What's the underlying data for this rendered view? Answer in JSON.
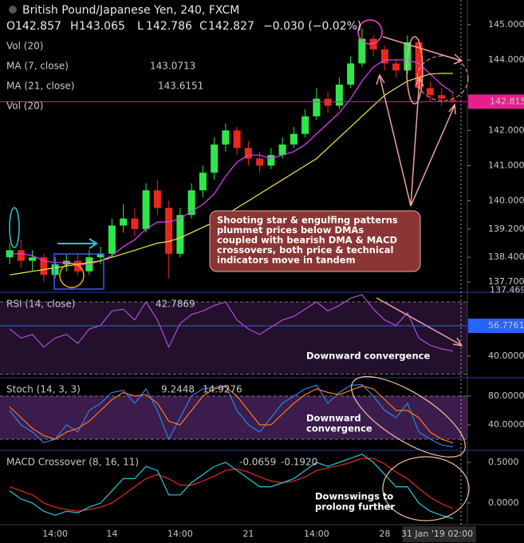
{
  "chart_data": [
    {
      "type": "candlestick",
      "title": "British Pound/Japanese Yen, 240, FXCM",
      "ohlc_letters": [
        "O",
        "H",
        "L",
        "C"
      ],
      "change": "−0.030 (−0.02%)",
      "indicator_labels": [
        "Vol (20)",
        "Vol (20)"
      ],
      "categories": [
        null,
        null,
        null,
        null,
        "14:00",
        null,
        null,
        null,
        null,
        "14",
        null,
        null,
        null,
        null,
        null,
        "14:00",
        null,
        null,
        null,
        null,
        null,
        "21",
        null,
        null,
        null,
        null,
        null,
        "14:00",
        null,
        null,
        null,
        null,
        null,
        "28",
        null,
        null,
        null,
        null,
        null,
        "31 Jan '19  02:00"
      ],
      "open": [
        138.4,
        138.6,
        138.3,
        138.4,
        137.9,
        138.2,
        138.3,
        138.0,
        138.4,
        138.5,
        139.3,
        139.5,
        139.2,
        140.3,
        139.8,
        138.5,
        139.6,
        140.3,
        140.8,
        141.6,
        142.0,
        141.5,
        141.2,
        141.0,
        141.3,
        141.6,
        141.9,
        142.4,
        142.9,
        142.7,
        143.3,
        143.9,
        144.6,
        144.3,
        143.9,
        143.7,
        144.5,
        143.2,
        143.0,
        142.857
      ],
      "high": [
        138.8,
        138.9,
        138.6,
        138.5,
        138.4,
        138.5,
        138.5,
        138.6,
        138.7,
        139.5,
        139.9,
        139.8,
        140.5,
        140.6,
        140.0,
        139.8,
        140.5,
        141.0,
        141.8,
        142.2,
        142.1,
        141.7,
        141.4,
        141.5,
        141.8,
        142.1,
        142.6,
        143.2,
        143.1,
        143.5,
        144.1,
        144.9,
        144.7,
        144.4,
        144.0,
        144.7,
        144.6,
        143.4,
        143.2,
        143.065
      ],
      "low": [
        138.2,
        138.1,
        138.0,
        137.7,
        137.8,
        138.0,
        137.9,
        137.9,
        138.2,
        138.4,
        139.1,
        139.0,
        139.1,
        139.6,
        137.8,
        138.4,
        139.5,
        140.1,
        140.6,
        141.4,
        141.3,
        141.0,
        140.8,
        140.9,
        141.2,
        141.5,
        141.8,
        142.3,
        142.5,
        142.6,
        143.2,
        143.8,
        144.1,
        143.7,
        143.5,
        143.6,
        143.0,
        142.8,
        142.7,
        142.786
      ],
      "close": [
        138.6,
        138.3,
        138.4,
        137.9,
        138.2,
        138.3,
        138.0,
        138.4,
        138.5,
        139.3,
        139.5,
        139.2,
        140.3,
        139.8,
        138.5,
        139.6,
        140.3,
        140.8,
        141.6,
        142.0,
        141.5,
        141.2,
        141.0,
        141.3,
        141.6,
        141.9,
        142.4,
        142.9,
        142.7,
        143.3,
        143.9,
        144.6,
        144.3,
        143.9,
        143.7,
        144.5,
        143.2,
        143.0,
        142.9,
        142.827
      ],
      "up_color": "#2ee84a",
      "down_color": "#e8281e",
      "overlays": [
        {
          "name": "MA (7, close)",
          "color": "#e040fb",
          "values": [
            138.5,
            138.5,
            138.45,
            138.3,
            138.25,
            138.25,
            138.2,
            138.2,
            138.3,
            138.45,
            138.7,
            138.9,
            139.2,
            139.4,
            139.4,
            139.5,
            139.7,
            139.9,
            140.2,
            140.7,
            141.1,
            141.3,
            141.3,
            141.2,
            141.3,
            141.4,
            141.6,
            141.9,
            142.2,
            142.5,
            142.9,
            143.4,
            143.8,
            144.0,
            144.0,
            144.0,
            143.9,
            143.6,
            143.3,
            143.0713
          ]
        },
        {
          "name": "MA (21, close)",
          "color": "#f2e94e",
          "values": [
            137.9,
            137.95,
            138.0,
            138.05,
            138.1,
            138.15,
            138.2,
            138.25,
            138.3,
            138.4,
            138.5,
            138.6,
            138.7,
            138.8,
            138.85,
            138.95,
            139.1,
            139.25,
            139.4,
            139.6,
            139.8,
            140.0,
            140.2,
            140.4,
            140.6,
            140.8,
            141.0,
            141.2,
            141.5,
            141.8,
            142.1,
            142.4,
            142.7,
            143.0,
            143.2,
            143.4,
            143.5,
            143.6,
            143.62,
            143.6151
          ]
        }
      ],
      "ylim": [
        137.43,
        145.7
      ],
      "yticks": [
        {
          "value": 145,
          "label": "145.000"
        },
        {
          "value": 144,
          "label": "144.000"
        },
        {
          "value": 142,
          "label": "142.000"
        },
        {
          "value": 141,
          "label": "141.000"
        },
        {
          "value": 140,
          "label": "140.000"
        },
        {
          "value": 139.2,
          "label": "139.200"
        },
        {
          "value": 138.4,
          "label": "138.400"
        },
        {
          "value": 137.7,
          "label": "137.700"
        }
      ],
      "price_line": 142.815,
      "price_line_color": "#e91e8c",
      "low_marker": 137.469,
      "annotation": [
        "Shooting star & engulfing patterns",
        "plummet prices below DMAs",
        "coupled with bearish DMA & MACD",
        "crossovers, both price & technical",
        "indicators move in tandem"
      ]
    },
    {
      "type": "line",
      "title": "RSI (14, close)",
      "series": [
        {
          "color": "#b04cd8",
          "values": [
            55,
            50,
            52,
            45,
            50,
            52,
            47,
            55,
            57,
            65,
            66,
            60,
            70,
            60,
            45,
            58,
            63,
            65,
            68,
            70,
            60,
            55,
            52,
            56,
            60,
            62,
            66,
            70,
            65,
            68,
            72,
            74,
            66,
            60,
            57,
            64,
            50,
            46,
            44,
            42.7869
          ]
        }
      ],
      "ylim": [
        28.5,
        74.9
      ],
      "yticks": [
        {
          "value": 40,
          "label": "40.0000"
        }
      ],
      "band": [
        30,
        70
      ],
      "level": 56.7761,
      "level_color": "#2962ff",
      "annotation": [
        "Downward convergence"
      ]
    },
    {
      "type": "line",
      "title": "Stoch (14, 3, 3)",
      "series": [
        {
          "color": "#2f80ed",
          "values": [
            60,
            40,
            30,
            15,
            20,
            40,
            30,
            60,
            70,
            85,
            88,
            70,
            90,
            60,
            20,
            50,
            80,
            90,
            92,
            95,
            60,
            40,
            30,
            50,
            70,
            80,
            90,
            95,
            70,
            85,
            95,
            96,
            80,
            60,
            50,
            70,
            30,
            20,
            12,
            9.2448
          ]
        },
        {
          "color": "#ff7a1a",
          "values": [
            65,
            50,
            35,
            25,
            20,
            30,
            35,
            45,
            60,
            75,
            85,
            80,
            82,
            70,
            45,
            40,
            60,
            80,
            90,
            93,
            80,
            60,
            40,
            40,
            55,
            70,
            82,
            90,
            85,
            82,
            88,
            94,
            90,
            75,
            60,
            60,
            50,
            30,
            20,
            14.9276
          ]
        }
      ],
      "ylim": [
        5.6,
        104.4
      ],
      "yticks": [
        {
          "value": 80,
          "label": "80.0000"
        },
        {
          "value": 40,
          "label": "40.0000"
        }
      ],
      "band": [
        20,
        80
      ],
      "annotation": [
        "Downward",
        "convergence"
      ]
    },
    {
      "type": "line",
      "title": "MACD Crossover (8, 16, 11)",
      "series": [
        {
          "color": "#e8281e",
          "values": [
            0.2,
            0.15,
            0.1,
            0.0,
            -0.05,
            -0.08,
            -0.1,
            -0.08,
            -0.05,
            0.0,
            0.1,
            0.2,
            0.3,
            0.35,
            0.3,
            0.22,
            0.22,
            0.27,
            0.33,
            0.4,
            0.42,
            0.38,
            0.32,
            0.27,
            0.25,
            0.27,
            0.32,
            0.4,
            0.43,
            0.46,
            0.5,
            0.55,
            0.55,
            0.48,
            0.38,
            0.3,
            0.18,
            0.07,
            -0.01,
            -0.0659
          ]
        },
        {
          "color": "#26c6da",
          "last_label": "-0.1920",
          "values": [
            0.15,
            0.05,
            0.0,
            -0.1,
            -0.15,
            -0.1,
            -0.12,
            -0.05,
            0.0,
            0.15,
            0.3,
            0.3,
            0.45,
            0.4,
            0.1,
            0.1,
            0.25,
            0.35,
            0.45,
            0.5,
            0.4,
            0.3,
            0.2,
            0.2,
            0.25,
            0.3,
            0.4,
            0.5,
            0.45,
            0.5,
            0.55,
            0.6,
            0.5,
            0.35,
            0.2,
            0.2,
            0.0,
            -0.1,
            -0.15,
            -0.192
          ]
        }
      ],
      "ylim": [
        -0.265,
        0.637
      ],
      "yticks": [
        {
          "value": 0.5,
          "label": "0.5000"
        },
        {
          "value": 0,
          "label": "0.0000"
        }
      ],
      "annotation": [
        "Downswings to",
        "prolong further"
      ]
    }
  ]
}
